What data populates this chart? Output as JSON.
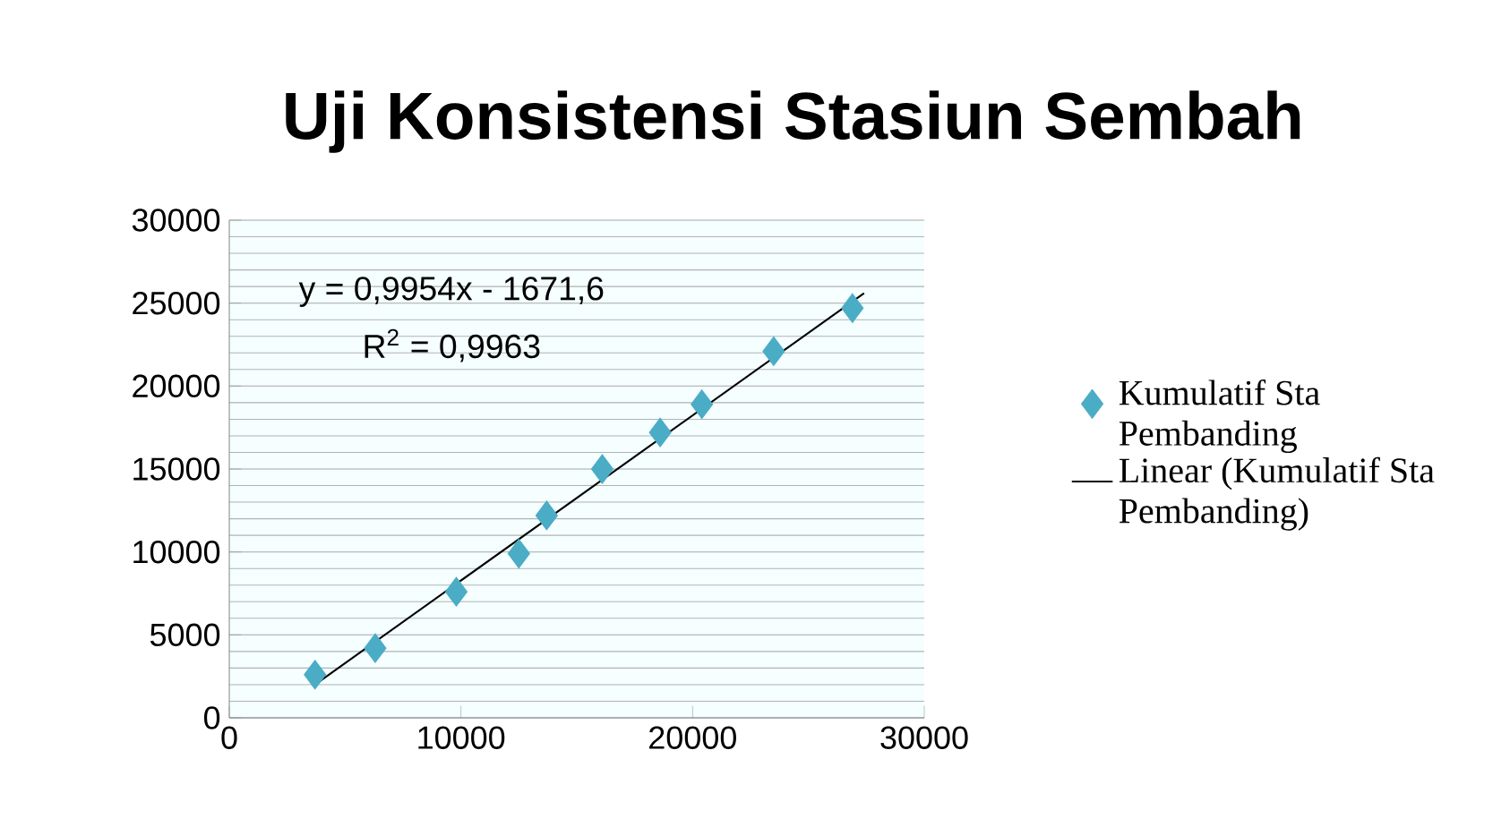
{
  "chart_data": {
    "type": "scatter",
    "title": "Uji Konsistensi Stasiun Sembah",
    "series": [
      {
        "name": "Kumulatif Sta Pembanding",
        "color": "#4bacc6",
        "marker": "diamond",
        "x": [
          3700,
          6300,
          9800,
          12500,
          13700,
          16100,
          18600,
          20400,
          23500,
          26900
        ],
        "values": [
          2600,
          4200,
          7600,
          9900,
          12200,
          15000,
          17200,
          18900,
          22100,
          24700
        ]
      },
      {
        "name": "Linear (Kumulatif Sta Pembanding)",
        "type": "line",
        "color": "#000000",
        "marker": "none",
        "line_style": "solid",
        "x": [
          3700,
          27400
        ],
        "values": [
          2000,
          25600
        ]
      }
    ],
    "annotations": [
      "y = 0,9954x - 1671,6",
      "R$^{2}$ = 0,9963"
    ],
    "xlim": [
      0,
      30000
    ],
    "xticks": [
      0,
      10000,
      20000,
      30000
    ],
    "ylim": [
      0,
      30000
    ],
    "yticks": [
      0,
      5000,
      10000,
      15000,
      20000,
      25000,
      30000
    ],
    "grid": "y",
    "legend": "right"
  }
}
